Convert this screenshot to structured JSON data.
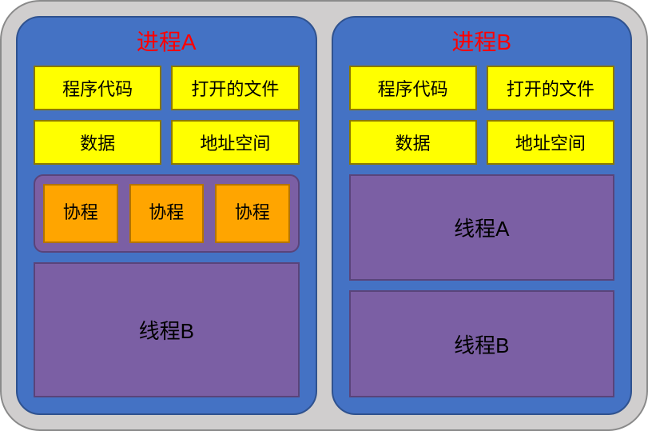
{
  "layout": {
    "outer_background": "#d0cece",
    "outer_border": "#8a8a8a",
    "process_background": "#4472c4",
    "process_border": "#2f528f",
    "resource_background": "#ffff00",
    "resource_border": "#8a7800",
    "thread_background": "#7b5fa4",
    "thread_border": "#5a447a",
    "coroutine_background": "#ffa500",
    "coroutine_border": "#b37400",
    "title_color": "#ff0000",
    "text_color": "#000000",
    "title_fontsize": 28,
    "resource_fontsize": 22,
    "thread_fontsize": 26,
    "coroutine_fontsize": 22
  },
  "processA": {
    "title": "进程A",
    "resources_row1": [
      "程序代码",
      "打开的文件"
    ],
    "resources_row2": [
      "数据",
      "地址空间"
    ],
    "coroutine_container": {
      "coroutines": [
        "协程",
        "协程",
        "协程"
      ]
    },
    "threadB": "线程B"
  },
  "processB": {
    "title": "进程B",
    "resources_row1": [
      "程序代码",
      "打开的文件"
    ],
    "resources_row2": [
      "数据",
      "地址空间"
    ],
    "threadA": "线程A",
    "threadB": "线程B"
  }
}
